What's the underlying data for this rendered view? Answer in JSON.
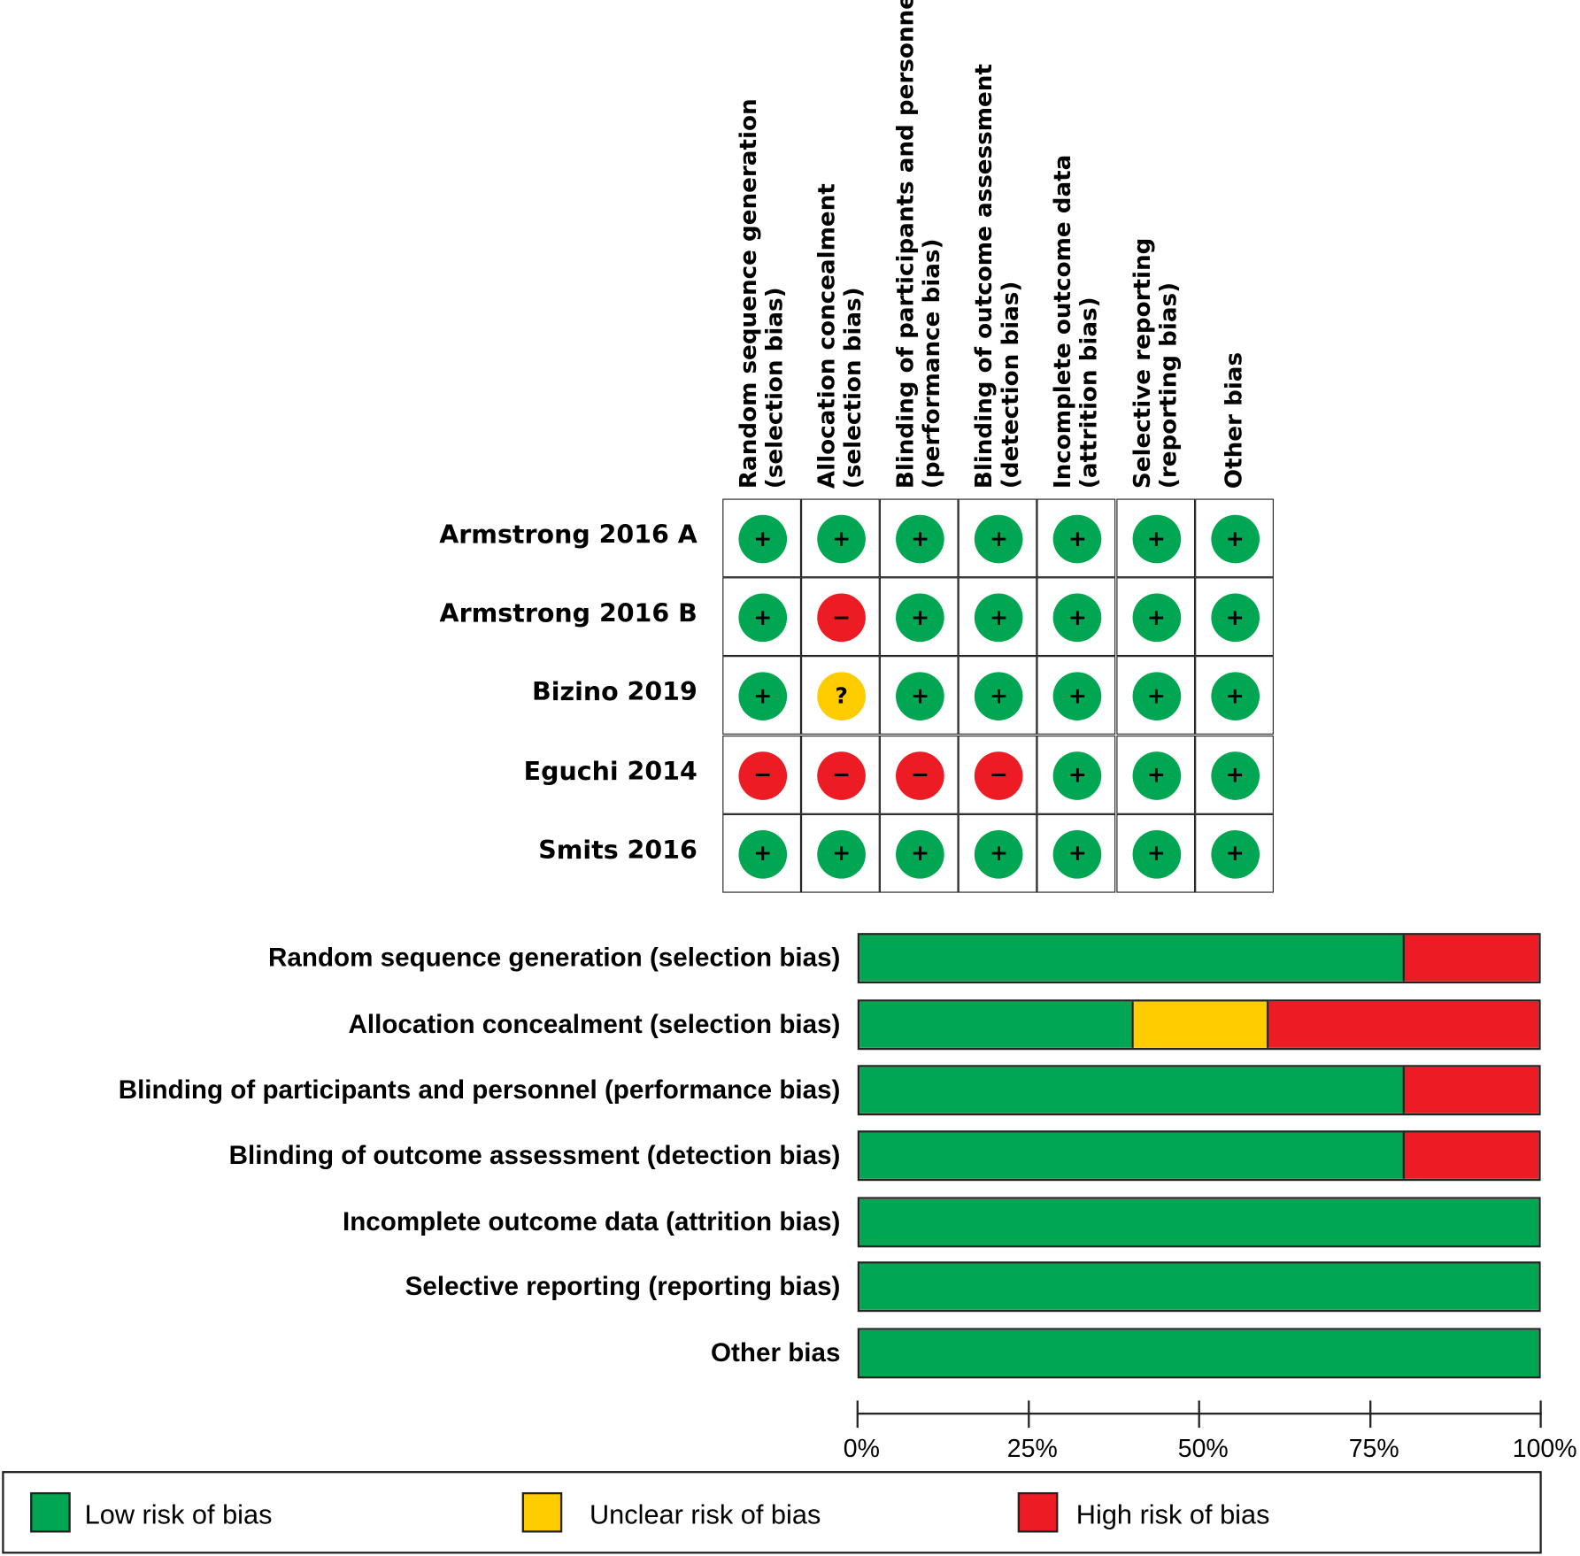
{
  "colors": {
    "low": "#00a651",
    "unclear": "#ffcc00",
    "high": "#ed1c24"
  },
  "symbols": {
    "low": "+",
    "unclear": "?",
    "high": "−"
  },
  "chart_data": [
    {
      "type": "table",
      "columns": [
        [
          "Random sequence generation",
          "(selection bias)"
        ],
        [
          "Allocation concealment",
          "(selection bias)"
        ],
        [
          "Blinding of participants and personnel",
          "(performance bias)"
        ],
        [
          "Blinding of outcome assessment",
          "(detection bias)"
        ],
        [
          "Incomplete outcome data",
          "(attrition bias)"
        ],
        [
          "Selective reporting",
          "(reporting bias)"
        ],
        [
          "Other bias",
          ""
        ]
      ],
      "rows": [
        {
          "study": "Armstrong 2016 A",
          "ratings": [
            "low",
            "low",
            "low",
            "low",
            "low",
            "low",
            "low"
          ]
        },
        {
          "study": "Armstrong 2016 B",
          "ratings": [
            "low",
            "high",
            "low",
            "low",
            "low",
            "low",
            "low"
          ]
        },
        {
          "study": "Bizino 2019",
          "ratings": [
            "low",
            "unclear",
            "low",
            "low",
            "low",
            "low",
            "low"
          ]
        },
        {
          "study": "Eguchi 2014",
          "ratings": [
            "high",
            "high",
            "high",
            "high",
            "low",
            "low",
            "low"
          ]
        },
        {
          "study": "Smits 2016",
          "ratings": [
            "low",
            "low",
            "low",
            "low",
            "low",
            "low",
            "low"
          ]
        }
      ]
    },
    {
      "type": "bar",
      "orientation": "horizontal-stacked",
      "categories": [
        "Random sequence generation (selection bias)",
        "Allocation concealment (selection bias)",
        "Blinding of participants and personnel (performance bias)",
        "Blinding of outcome assessment (detection bias)",
        "Incomplete outcome data (attrition bias)",
        "Selective reporting (reporting bias)",
        "Other bias"
      ],
      "series": [
        {
          "name": "Low risk of bias",
          "key": "low",
          "values": [
            80,
            40,
            80,
            80,
            100,
            100,
            100
          ]
        },
        {
          "name": "Unclear risk of bias",
          "key": "unclear",
          "values": [
            0,
            20,
            0,
            0,
            0,
            0,
            0
          ]
        },
        {
          "name": "High risk of bias",
          "key": "high",
          "values": [
            20,
            40,
            20,
            20,
            0,
            0,
            0
          ]
        }
      ],
      "xlim": [
        0,
        100
      ],
      "xticks": [
        "0%",
        "25%",
        "50%",
        "75%",
        "100%"
      ],
      "legend_position": "bottom"
    }
  ],
  "legend": [
    {
      "key": "low",
      "label": "Low risk of bias"
    },
    {
      "key": "unclear",
      "label": "Unclear risk of bias"
    },
    {
      "key": "high",
      "label": "High risk of bias"
    }
  ]
}
